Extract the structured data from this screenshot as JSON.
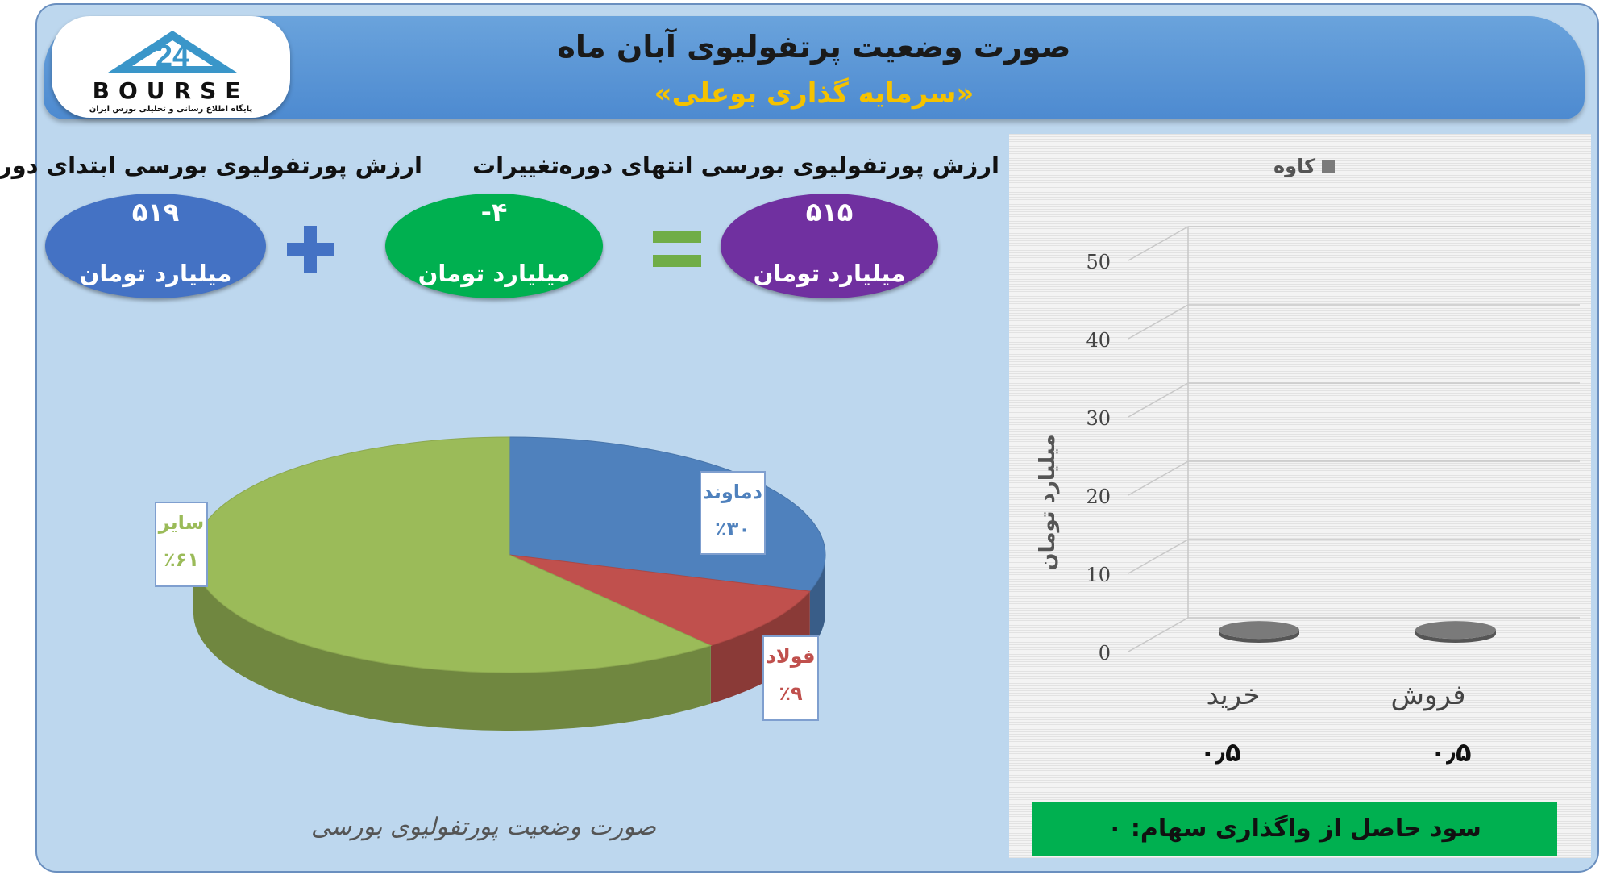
{
  "header": {
    "title": "صورت وضعیت پرتفولیوی آبان ماه",
    "subtitle": "«سرمایه گذاری بوعلی»"
  },
  "logo": {
    "word": "BOURSE",
    "tagline": "پایگاه اطلاع رسانی و تحلیلی بورس ایران"
  },
  "summary": {
    "start_label": "ارزش پورتفولیوی بورسی ابتدای دوره",
    "start_value": "۵۱۹",
    "change_label": "تغییرات",
    "change_value": "-۴",
    "end_label": "ارزش پورتفولیوی بورسی انتهای دوره",
    "end_value": "۵۱۵",
    "unit": "میلیارد تومان",
    "colors": {
      "start": "#4472c4",
      "change": "#00b050",
      "end": "#7030a0",
      "plus": "#4472c4",
      "equals": "#70ad47"
    }
  },
  "chart_data": [
    {
      "type": "pie",
      "title": "صورت وضعیت پورتفولیوی بورسی",
      "slices": [
        {
          "label": "دماوند",
          "value_text": "٪۳۰",
          "value": 30,
          "color": "#4f81bd"
        },
        {
          "label": "فولاد",
          "value_text": "٪۹",
          "value": 9,
          "color": "#c0504d"
        },
        {
          "label": "سایر",
          "value_text": "٪۶۱",
          "value": 61,
          "color": "#9bbb59"
        }
      ]
    },
    {
      "type": "bar",
      "title": "",
      "categories": [
        "خرید",
        "فروش"
      ],
      "series": [
        {
          "name": "کاوه",
          "values": [
            0.5,
            0.5
          ],
          "color": "#7a7a7a"
        }
      ],
      "value_labels": [
        "۰٫۵",
        "۰٫۵"
      ],
      "ylabel": "میلیارد تومان",
      "yticks": [
        "0",
        "10",
        "20",
        "30",
        "40",
        "50"
      ],
      "ylim": [
        0,
        50
      ],
      "grid": true,
      "legend": "top"
    }
  ],
  "profit": {
    "text": "سود حاصل از واگذاری سهام: ۰"
  }
}
